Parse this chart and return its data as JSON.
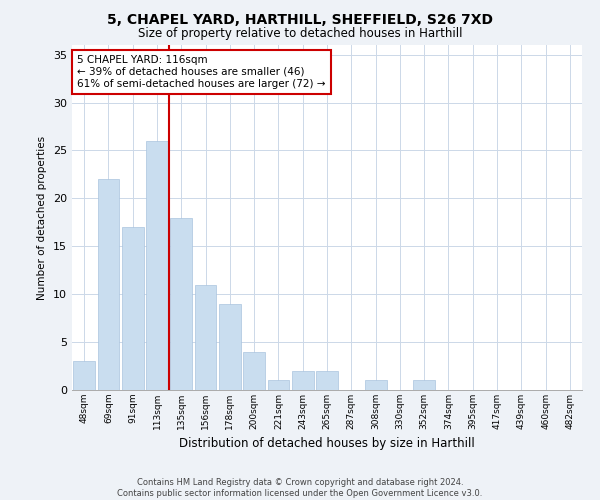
{
  "title1": "5, CHAPEL YARD, HARTHILL, SHEFFIELD, S26 7XD",
  "title2": "Size of property relative to detached houses in Harthill",
  "xlabel": "Distribution of detached houses by size in Harthill",
  "ylabel": "Number of detached properties",
  "categories": [
    "48sqm",
    "69sqm",
    "91sqm",
    "113sqm",
    "135sqm",
    "156sqm",
    "178sqm",
    "200sqm",
    "221sqm",
    "243sqm",
    "265sqm",
    "287sqm",
    "308sqm",
    "330sqm",
    "352sqm",
    "374sqm",
    "395sqm",
    "417sqm",
    "439sqm",
    "460sqm",
    "482sqm"
  ],
  "values": [
    3,
    22,
    17,
    26,
    18,
    11,
    9,
    4,
    1,
    2,
    2,
    0,
    1,
    0,
    1,
    0,
    0,
    0,
    0,
    0,
    0
  ],
  "bar_color": "#c9ddef",
  "bar_edge_color": "#aac4df",
  "highlight_line_index": 3,
  "highlight_line_color": "#cc0000",
  "ylim": [
    0,
    36
  ],
  "yticks": [
    0,
    5,
    10,
    15,
    20,
    25,
    30,
    35
  ],
  "annotation_text": "5 CHAPEL YARD: 116sqm\n← 39% of detached houses are smaller (46)\n61% of semi-detached houses are larger (72) →",
  "annotation_box_color": "#ffffff",
  "annotation_box_edge_color": "#cc0000",
  "footer1": "Contains HM Land Registry data © Crown copyright and database right 2024.",
  "footer2": "Contains public sector information licensed under the Open Government Licence v3.0.",
  "background_color": "#eef2f7",
  "plot_bg_color": "#ffffff",
  "grid_color": "#ccd8e8"
}
